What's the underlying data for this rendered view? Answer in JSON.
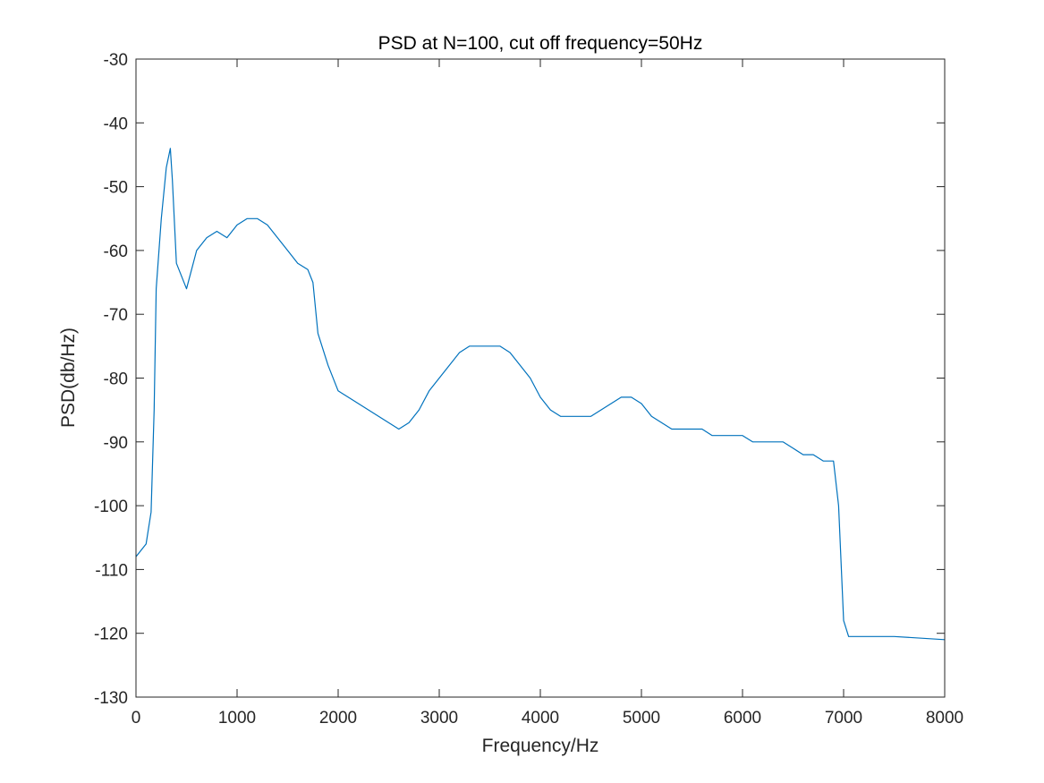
{
  "chart_data": {
    "type": "line",
    "title": "PSD at N=100, cut off frequency=50Hz",
    "xlabel": "Frequency/Hz",
    "ylabel": "PSD(db/Hz)",
    "xlim": [
      0,
      8000
    ],
    "ylim": [
      -130,
      -30
    ],
    "xticks": [
      "0",
      "1000",
      "2000",
      "3000",
      "4000",
      "5000",
      "6000",
      "7000",
      "8000"
    ],
    "yticks": [
      "-30",
      "-40",
      "-50",
      "-60",
      "-70",
      "-80",
      "-90",
      "-100",
      "-110",
      "-120",
      "-130"
    ],
    "grid": false,
    "legend": "none",
    "line_color": "#0072BD",
    "series": [
      {
        "x": [
          0,
          100,
          150,
          180,
          200,
          250,
          300,
          340,
          360,
          400,
          500,
          600,
          700,
          800,
          900,
          1000,
          1100,
          1200,
          1300,
          1400,
          1500,
          1600,
          1700,
          1750,
          1800,
          1900,
          2000,
          2100,
          2200,
          2300,
          2400,
          2500,
          2600,
          2700,
          2800,
          2900,
          3000,
          3100,
          3200,
          3300,
          3400,
          3500,
          3600,
          3700,
          3800,
          3900,
          4000,
          4100,
          4200,
          4300,
          4400,
          4500,
          4600,
          4700,
          4800,
          4900,
          5000,
          5100,
          5200,
          5300,
          5400,
          5500,
          5600,
          5700,
          5800,
          5900,
          6000,
          6100,
          6200,
          6300,
          6400,
          6500,
          6600,
          6700,
          6800,
          6900,
          6950,
          7000,
          7050,
          7500,
          8000
        ],
        "y": [
          -108,
          -106,
          -101,
          -85,
          -66,
          -55,
          -47,
          -44,
          -49,
          -62,
          -66,
          -60,
          -58,
          -57,
          -58,
          -56,
          -55,
          -55,
          -56,
          -58,
          -60,
          -62,
          -63,
          -65,
          -73,
          -78,
          -82,
          -83,
          -84,
          -85,
          -86,
          -87,
          -88,
          -87,
          -85,
          -82,
          -80,
          -78,
          -76,
          -75,
          -75,
          -75,
          -75,
          -76,
          -78,
          -80,
          -83,
          -85,
          -86,
          -86,
          -86,
          -86,
          -85,
          -84,
          -83,
          -83,
          -84,
          -86,
          -87,
          -88,
          -88,
          -88,
          -88,
          -89,
          -89,
          -89,
          -89,
          -90,
          -90,
          -90,
          -90,
          -91,
          -92,
          -92,
          -93,
          -93,
          -100,
          -118,
          -120.5,
          -120.5,
          -121
        ]
      }
    ]
  }
}
